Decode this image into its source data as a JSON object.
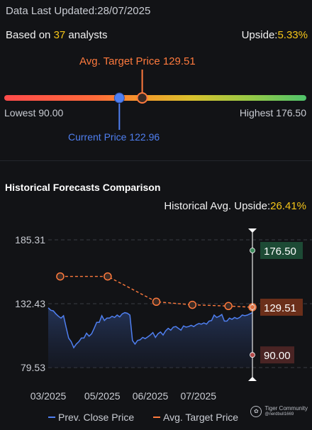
{
  "header": {
    "updated": "Data Last Updated:28/07/2025",
    "based_prefix": "Based on ",
    "analyst_count": "37",
    "based_suffix": " analysts",
    "upside_label": "Upside:",
    "upside_value": "5.33%"
  },
  "range": {
    "target_label": "Avg. Target Price 129.51",
    "lowest_label": "Lowest 90.00",
    "highest_label": "Highest 176.50",
    "current_label": "Current Price 122.96",
    "low": 90.0,
    "high": 176.5,
    "current": 122.96,
    "target": 129.51
  },
  "history": {
    "title": "Historical Forecasts Comparison",
    "upside_label": "Historical Avg. Upside:",
    "upside_value": "26.41%"
  },
  "chart_data": {
    "type": "line",
    "y_ticks": [
      "185.31",
      "132.43",
      "79.53"
    ],
    "x_ticks": [
      "03/2025",
      "05/2025",
      "06/2025",
      "07/2025"
    ],
    "ylim": [
      79.53,
      185.31
    ],
    "series": [
      {
        "name": "Prev. Close Price",
        "color": "#4f7ff0",
        "values": [
          129,
          127,
          126.5,
          124,
          122,
          120.5,
          122.5,
          113,
          104,
          101,
          96,
          99,
          101,
          104,
          104,
          108,
          105.5,
          107.5,
          112,
          117,
          117,
          122.5,
          118.5,
          120.5,
          120.5,
          122,
          121,
          123,
          121.5,
          124,
          125,
          124.5,
          123,
          102,
          99,
          102,
          102.5,
          104.5,
          103.5,
          105,
          106.5,
          108.5,
          104.5,
          107.5,
          109,
          106.5,
          110,
          112,
          110.5,
          113,
          113.5,
          112,
          110.5,
          114,
          113,
          113.5,
          114.5,
          113.5,
          115,
          116,
          115.5,
          116.5,
          115.5,
          118,
          118.5,
          123,
          121,
          122,
          123.5,
          118,
          118,
          120.5,
          119.5,
          121,
          120,
          121,
          123,
          122.5,
          123,
          124,
          125
        ]
      },
      {
        "name": "Avg. Target Price",
        "color": "#ff7a3d",
        "points": [
          {
            "t": 0.0588,
            "v": 155.0
          },
          {
            "t": 0.2912,
            "v": 155.0
          },
          {
            "t": 0.5294,
            "v": 134.0
          },
          {
            "t": 0.7059,
            "v": 131.5
          },
          {
            "t": 0.8824,
            "v": 130.5
          },
          {
            "t": 1.0,
            "v": 129.51
          }
        ]
      }
    ],
    "end_labels": [
      {
        "text": "176.50",
        "value": 176.5,
        "bg": "#1d4a35",
        "dot": "#3a8a5a"
      },
      {
        "text": "129.51",
        "value": 129.51,
        "bg": "#6b2f1a",
        "dot": "#e07040"
      },
      {
        "text": "90.00",
        "value": 90.0,
        "bg": "#4a2424",
        "dot": "#b04848"
      }
    ],
    "grid": true,
    "legend": "bottom"
  },
  "legend": {
    "prev_close": "Prev. Close Price",
    "avg_target": "Avg. Target Price"
  },
  "brand": {
    "line1": "Tiger Community",
    "line2": "@nerdbull1669"
  },
  "colors": {
    "accent_yellow": "#f5c518",
    "current_blue": "#4f7ff0",
    "target_orange": "#ff7a3d"
  }
}
